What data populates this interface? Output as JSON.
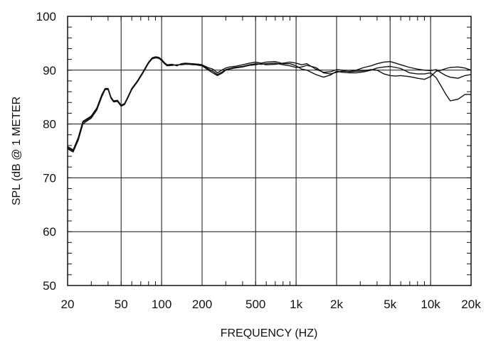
{
  "chart_data": {
    "type": "line",
    "title": "",
    "xlabel": "FREQUENCY  (HZ)",
    "ylabel": "SPL (dB @ 1 METER",
    "xscale": "log",
    "xlim": [
      20,
      20000
    ],
    "ylim": [
      50,
      100
    ],
    "grid": true,
    "legend": "none",
    "line_color": "#111111",
    "x_ticks": [
      20,
      50,
      100,
      200,
      500,
      1000,
      2000,
      5000,
      10000,
      20000
    ],
    "x_tick_labels": [
      "20",
      "50",
      "100",
      "200",
      "500",
      "1k",
      "2k",
      "5k",
      "10k",
      "20k"
    ],
    "y_ticks": [
      50,
      60,
      70,
      80,
      90,
      100
    ],
    "y_tick_labels": [
      "50",
      "60",
      "70",
      "80",
      "90",
      "100"
    ],
    "series": [
      {
        "x": [
          20,
          22,
          24,
          26,
          28,
          30,
          33,
          36,
          38,
          40,
          42,
          44,
          47,
          50,
          53,
          56,
          60,
          66,
          72,
          80,
          85,
          90,
          95,
          100,
          105,
          110,
          120,
          130,
          140,
          150,
          170,
          190,
          200,
          220,
          240,
          260,
          280,
          300,
          320,
          350,
          400,
          450,
          500,
          550,
          600,
          700,
          800,
          900,
          1000,
          1100,
          1200,
          1400,
          1600,
          1800,
          2000,
          2200,
          2500,
          2800,
          3200,
          3600,
          4000,
          4500,
          5000,
          5500,
          6000,
          7000,
          8000,
          9000,
          10000,
          11000,
          12000,
          13000,
          14000,
          16000,
          18000,
          20000
        ],
        "y": [
          75.8,
          75.2,
          77.5,
          80.5,
          81.0,
          81.5,
          83.0,
          85.5,
          86.6,
          86.6,
          85.0,
          84.3,
          84.4,
          83.5,
          83.8,
          85.0,
          86.6,
          88.0,
          89.5,
          91.5,
          92.3,
          92.5,
          92.4,
          92.0,
          91.4,
          91.0,
          91.1,
          90.8,
          91.2,
          91.3,
          91.2,
          91.1,
          91.0,
          90.5,
          90.2,
          89.5,
          90.0,
          90.4,
          90.6,
          90.7,
          91.0,
          91.3,
          91.5,
          91.3,
          91.5,
          91.6,
          91.2,
          91.2,
          90.8,
          90.2,
          90.0,
          89.2,
          88.7,
          89.1,
          89.8,
          89.6,
          89.5,
          89.5,
          89.7,
          90.0,
          90.4,
          90.6,
          90.7,
          90.5,
          90.3,
          89.5,
          89.3,
          89.3,
          89.5,
          88.6,
          87.0,
          85.5,
          84.3,
          84.6,
          85.5,
          85.5
        ]
      },
      {
        "x": [
          20,
          22,
          24,
          26,
          28,
          30,
          33,
          36,
          38,
          40,
          42,
          44,
          47,
          50,
          53,
          56,
          60,
          66,
          72,
          80,
          85,
          90,
          95,
          100,
          105,
          110,
          120,
          130,
          140,
          150,
          170,
          190,
          200,
          220,
          240,
          260,
          280,
          300,
          320,
          350,
          400,
          450,
          500,
          550,
          600,
          700,
          800,
          900,
          1000,
          1100,
          1200,
          1400,
          1600,
          1800,
          2000,
          2200,
          2500,
          2800,
          3200,
          3600,
          4000,
          4500,
          5000,
          5500,
          6000,
          7000,
          8000,
          9000,
          10000,
          11000,
          12000,
          13000,
          14000,
          16000,
          18000,
          20000
        ],
        "y": [
          75.6,
          75.0,
          77.2,
          80.3,
          80.8,
          81.3,
          82.8,
          85.3,
          86.5,
          86.5,
          84.9,
          84.2,
          84.3,
          83.4,
          83.7,
          84.9,
          86.5,
          87.9,
          89.4,
          91.4,
          92.2,
          92.4,
          92.3,
          91.9,
          91.3,
          90.9,
          91.0,
          90.9,
          91.1,
          91.2,
          91.0,
          91.0,
          90.9,
          90.3,
          89.8,
          89.2,
          89.6,
          90.1,
          90.3,
          90.5,
          90.7,
          91.0,
          91.2,
          91.1,
          91.2,
          91.3,
          91.0,
          90.8,
          90.5,
          90.6,
          90.9,
          90.5,
          89.5,
          89.3,
          89.6,
          89.8,
          89.8,
          90.0,
          90.5,
          90.8,
          91.2,
          91.5,
          91.6,
          91.3,
          91.0,
          90.5,
          90.2,
          90.0,
          89.9,
          90.1,
          89.5,
          89.0,
          88.7,
          88.5,
          89.0,
          89.2
        ]
      },
      {
        "x": [
          20,
          22,
          24,
          26,
          28,
          30,
          33,
          36,
          38,
          40,
          42,
          44,
          47,
          50,
          53,
          56,
          60,
          66,
          72,
          80,
          85,
          90,
          95,
          100,
          105,
          110,
          120,
          130,
          140,
          150,
          170,
          190,
          200,
          220,
          240,
          260,
          280,
          300,
          320,
          350,
          400,
          450,
          500,
          550,
          600,
          700,
          800,
          900,
          1000,
          1100,
          1200,
          1400,
          1600,
          1800,
          2000,
          2200,
          2500,
          2800,
          3200,
          3600,
          4000,
          4500,
          5000,
          5500,
          6000,
          7000,
          8000,
          9000,
          10000,
          11000,
          12000,
          13000,
          14000,
          16000,
          18000,
          20000
        ],
        "y": [
          75.4,
          74.8,
          77.0,
          80.0,
          80.6,
          81.1,
          82.6,
          85.1,
          86.4,
          86.4,
          84.8,
          84.1,
          84.2,
          83.3,
          83.6,
          84.8,
          86.4,
          87.8,
          89.3,
          91.3,
          92.1,
          92.3,
          92.2,
          91.8,
          91.2,
          90.8,
          90.9,
          91.0,
          91.0,
          91.1,
          91.1,
          90.9,
          90.8,
          90.1,
          89.5,
          89.0,
          89.4,
          90.0,
          90.2,
          90.4,
          90.6,
          90.9,
          91.0,
          91.2,
          91.0,
          91.1,
          91.3,
          91.5,
          91.3,
          91.0,
          91.2,
          90.2,
          89.6,
          89.7,
          90.1,
          90.0,
          89.7,
          89.8,
          89.9,
          90.1,
          90.0,
          89.3,
          89.0,
          88.9,
          89.0,
          88.8,
          88.5,
          88.3,
          88.8,
          89.8,
          90.0,
          90.3,
          90.5,
          90.6,
          90.4,
          90.0
        ]
      }
    ]
  }
}
